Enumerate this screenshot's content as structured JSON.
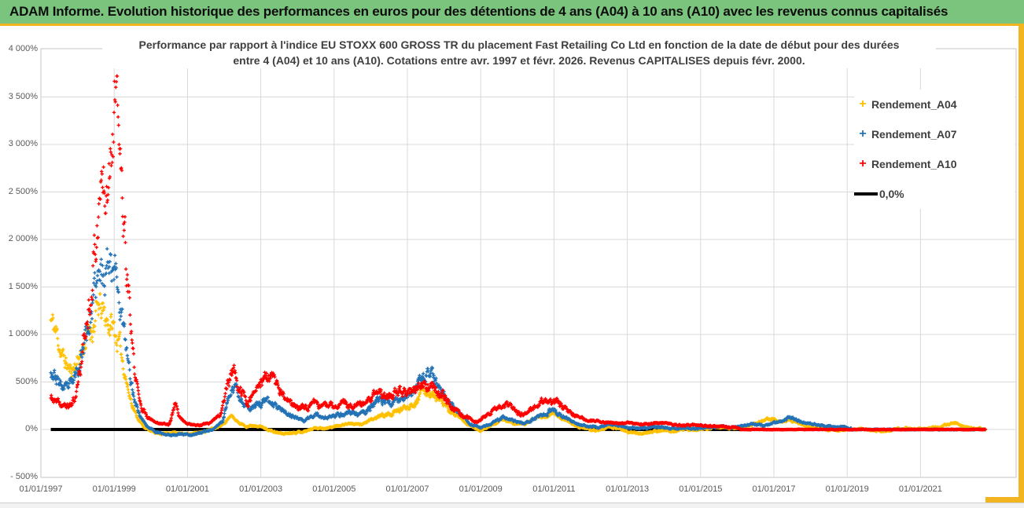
{
  "header": {
    "title": "ADAM Informe. Evolution historique des performances en euros pour des détentions de 4 ans (A04) à 10 ans (A10) avec les revenus connus capitalisés",
    "bg_color": "#7AC47D"
  },
  "chart": {
    "title_lines": [
      "Performance par rapport à l'indice EU STOXX 600 GROSS TR  du placement Fast Retailing Co Ltd en fonction de la date de début pour des durées",
      "entre 4 (A04) et 10 ans (A10). Cotations entre avr. 1997 et févr. 2026. Revenus CAPITALISES depuis févr. 2000."
    ],
    "legend": [
      {
        "label": "Rendement_A04",
        "color": "#FFC000",
        "marker": "plus"
      },
      {
        "label": "Rendement_A07",
        "color": "#2272B5",
        "marker": "plus"
      },
      {
        "label": "Rendement_A10",
        "color": "#FF0000",
        "marker": "plus"
      },
      {
        "label": "0,0%",
        "color": "#000000",
        "marker": "line"
      }
    ]
  },
  "chart_data": {
    "type": "scatter",
    "marker": "plus",
    "grid": true,
    "legend_position": "right",
    "x_axis": {
      "kind": "date",
      "tick_labels": [
        "01/01/1997",
        "01/01/1999",
        "01/01/2001",
        "01/01/2003",
        "01/01/2005",
        "01/01/2007",
        "01/01/2009",
        "01/01/2011",
        "01/01/2013",
        "01/01/2015",
        "01/01/2017",
        "01/01/2019",
        "01/01/2021"
      ],
      "tick_years": [
        1997,
        1999,
        2001,
        2003,
        2005,
        2007,
        2009,
        2011,
        2013,
        2015,
        2017,
        2019,
        2021
      ],
      "data_start_year": 1997.27,
      "data_end_year": 2022.78
    },
    "y_axis": {
      "unit": "%",
      "tick_labels": [
        "4 000%",
        "3 500%",
        "3 000%",
        "2 500%",
        "2 000%",
        "1 500%",
        "1 000%",
        "500%",
        "0%",
        "- 500%"
      ],
      "tick_values": [
        4000,
        3500,
        3000,
        2500,
        2000,
        1500,
        1000,
        500,
        0,
        -500
      ],
      "range": [
        -500,
        4000
      ]
    },
    "zero_line": {
      "label": "0,0%",
      "value": 0,
      "color": "#000000",
      "x_start_year": 1997.27,
      "x_end_year": 2022.78
    },
    "sampling": {
      "points_per_year": 80,
      "spread_factor": 0.13,
      "min_spread": 8,
      "flat_spread": 2.5,
      "value_max": 3720,
      "value_min": -460
    },
    "series": [
      {
        "name": "Rendement_A04",
        "color": "#FFC000",
        "seed": 11,
        "start_year": 1997.27,
        "end_year": 2022.78,
        "flat_zero_from": null,
        "anchors": [
          [
            1997.27,
            1150
          ],
          [
            1997.45,
            980
          ],
          [
            1997.6,
            760
          ],
          [
            1997.8,
            610
          ],
          [
            1998.0,
            720
          ],
          [
            1998.2,
            920
          ],
          [
            1998.45,
            1130
          ],
          [
            1998.6,
            1280
          ],
          [
            1998.75,
            1160
          ],
          [
            1998.95,
            1090
          ],
          [
            1999.1,
            940
          ],
          [
            1999.25,
            700
          ],
          [
            1999.4,
            380
          ],
          [
            1999.6,
            150
          ],
          [
            1999.8,
            30
          ],
          [
            2000.0,
            -20
          ],
          [
            2000.3,
            -45
          ],
          [
            2000.6,
            -30
          ],
          [
            2000.9,
            -50
          ],
          [
            2001.2,
            -40
          ],
          [
            2001.5,
            -15
          ],
          [
            2001.8,
            25
          ],
          [
            2002.0,
            70
          ],
          [
            2002.2,
            145
          ],
          [
            2002.4,
            70
          ],
          [
            2002.6,
            35
          ],
          [
            2002.9,
            45
          ],
          [
            2003.1,
            15
          ],
          [
            2003.35,
            -25
          ],
          [
            2003.6,
            -45
          ],
          [
            2003.9,
            -30
          ],
          [
            2004.2,
            -20
          ],
          [
            2004.5,
            20
          ],
          [
            2004.8,
            10
          ],
          [
            2005.1,
            40
          ],
          [
            2005.4,
            65
          ],
          [
            2005.7,
            50
          ],
          [
            2006.0,
            95
          ],
          [
            2006.3,
            150
          ],
          [
            2006.6,
            165
          ],
          [
            2006.9,
            225
          ],
          [
            2007.2,
            290
          ],
          [
            2007.45,
            420
          ],
          [
            2007.6,
            400
          ],
          [
            2007.8,
            330
          ],
          [
            2008.0,
            260
          ],
          [
            2008.2,
            180
          ],
          [
            2008.45,
            110
          ],
          [
            2008.7,
            35
          ],
          [
            2009.0,
            -15
          ],
          [
            2009.3,
            45
          ],
          [
            2009.6,
            105
          ],
          [
            2009.9,
            70
          ],
          [
            2010.2,
            55
          ],
          [
            2010.5,
            115
          ],
          [
            2010.8,
            155
          ],
          [
            2011.0,
            170
          ],
          [
            2011.3,
            100
          ],
          [
            2011.6,
            40
          ],
          [
            2011.9,
            0
          ],
          [
            2012.2,
            -10
          ],
          [
            2012.5,
            25
          ],
          [
            2012.8,
            5
          ],
          [
            2013.1,
            -30
          ],
          [
            2013.4,
            -45
          ],
          [
            2013.7,
            -20
          ],
          [
            2014.0,
            -10
          ],
          [
            2014.3,
            -20
          ],
          [
            2014.6,
            5
          ],
          [
            2014.9,
            -10
          ],
          [
            2015.2,
            10
          ],
          [
            2015.5,
            25
          ],
          [
            2015.8,
            10
          ],
          [
            2016.1,
            20
          ],
          [
            2016.4,
            45
          ],
          [
            2016.7,
            95
          ],
          [
            2016.9,
            125
          ],
          [
            2017.1,
            85
          ],
          [
            2017.4,
            95
          ],
          [
            2017.6,
            75
          ],
          [
            2017.9,
            35
          ],
          [
            2018.2,
            10
          ],
          [
            2018.5,
            0
          ],
          [
            2018.8,
            -12
          ],
          [
            2019.1,
            0
          ],
          [
            2019.4,
            12
          ],
          [
            2019.7,
            -12
          ],
          [
            2020.0,
            -18
          ],
          [
            2020.3,
            0
          ],
          [
            2020.6,
            12
          ],
          [
            2020.9,
            0
          ],
          [
            2021.2,
            10
          ],
          [
            2021.5,
            30
          ],
          [
            2021.8,
            62
          ],
          [
            2021.95,
            75
          ],
          [
            2022.1,
            40
          ],
          [
            2022.4,
            12
          ],
          [
            2022.78,
            5
          ]
        ]
      },
      {
        "name": "Rendement_A07",
        "color": "#2272B5",
        "seed": 23,
        "start_year": 1997.27,
        "end_year": 2022.78,
        "flat_zero_from": 2019.12,
        "anchors": [
          [
            1997.27,
            650
          ],
          [
            1997.5,
            480
          ],
          [
            1997.7,
            410
          ],
          [
            1997.9,
            510
          ],
          [
            1998.1,
            800
          ],
          [
            1998.3,
            1100
          ],
          [
            1998.5,
            1450
          ],
          [
            1998.7,
            1700
          ],
          [
            1998.9,
            1900
          ],
          [
            1999.0,
            1760
          ],
          [
            1999.15,
            1400
          ],
          [
            1999.3,
            900
          ],
          [
            1999.5,
            400
          ],
          [
            1999.7,
            150
          ],
          [
            1999.9,
            30
          ],
          [
            2000.2,
            -35
          ],
          [
            2000.5,
            -60
          ],
          [
            2000.8,
            -45
          ],
          [
            2001.1,
            -55
          ],
          [
            2001.4,
            -30
          ],
          [
            2001.7,
            0
          ],
          [
            2001.95,
            85
          ],
          [
            2002.15,
            380
          ],
          [
            2002.3,
            420
          ],
          [
            2002.5,
            255
          ],
          [
            2002.7,
            220
          ],
          [
            2002.9,
            280
          ],
          [
            2003.1,
            300
          ],
          [
            2003.3,
            270
          ],
          [
            2003.5,
            250
          ],
          [
            2003.7,
            180
          ],
          [
            2003.9,
            125
          ],
          [
            2004.2,
            100
          ],
          [
            2004.5,
            160
          ],
          [
            2004.8,
            120
          ],
          [
            2005.1,
            150
          ],
          [
            2005.4,
            185
          ],
          [
            2005.7,
            150
          ],
          [
            2006.0,
            225
          ],
          [
            2006.3,
            310
          ],
          [
            2006.6,
            285
          ],
          [
            2006.9,
            350
          ],
          [
            2007.1,
            385
          ],
          [
            2007.35,
            470
          ],
          [
            2007.55,
            590
          ],
          [
            2007.7,
            525
          ],
          [
            2007.9,
            430
          ],
          [
            2008.1,
            330
          ],
          [
            2008.4,
            180
          ],
          [
            2008.7,
            60
          ],
          [
            2009.0,
            20
          ],
          [
            2009.3,
            65
          ],
          [
            2009.6,
            125
          ],
          [
            2009.9,
            85
          ],
          [
            2010.2,
            60
          ],
          [
            2010.5,
            125
          ],
          [
            2010.8,
            175
          ],
          [
            2011.0,
            205
          ],
          [
            2011.3,
            125
          ],
          [
            2011.6,
            60
          ],
          [
            2011.9,
            30
          ],
          [
            2012.2,
            20
          ],
          [
            2012.5,
            60
          ],
          [
            2012.8,
            40
          ],
          [
            2013.1,
            20
          ],
          [
            2013.4,
            10
          ],
          [
            2013.7,
            30
          ],
          [
            2014.0,
            20
          ],
          [
            2014.3,
            10
          ],
          [
            2014.6,
            22
          ],
          [
            2014.9,
            12
          ],
          [
            2015.2,
            20
          ],
          [
            2015.5,
            32
          ],
          [
            2015.8,
            22
          ],
          [
            2016.1,
            30
          ],
          [
            2016.4,
            62
          ],
          [
            2016.7,
            42
          ],
          [
            2017.0,
            72
          ],
          [
            2017.3,
            112
          ],
          [
            2017.5,
            132
          ],
          [
            2017.7,
            92
          ],
          [
            2018.0,
            60
          ],
          [
            2018.3,
            42
          ],
          [
            2018.6,
            30
          ],
          [
            2018.9,
            25
          ],
          [
            2019.12,
            10
          ]
        ]
      },
      {
        "name": "Rendement_A10",
        "color": "#FF0000",
        "seed": 37,
        "start_year": 1997.27,
        "end_year": 2022.78,
        "flat_zero_from": 2016.08,
        "anchors": [
          [
            1997.27,
            330
          ],
          [
            1997.5,
            260
          ],
          [
            1997.75,
            240
          ],
          [
            1997.95,
            330
          ],
          [
            1998.1,
            700
          ],
          [
            1998.3,
            1300
          ],
          [
            1998.5,
            2000
          ],
          [
            1998.65,
            2600
          ],
          [
            1998.8,
            2850
          ],
          [
            1998.95,
            3300
          ],
          [
            1999.05,
            3430
          ],
          [
            1999.15,
            2900
          ],
          [
            1999.25,
            2200
          ],
          [
            1999.4,
            1300
          ],
          [
            1999.55,
            620
          ],
          [
            1999.7,
            280
          ],
          [
            1999.9,
            120
          ],
          [
            2000.2,
            70
          ],
          [
            2000.5,
            55
          ],
          [
            2000.68,
            300
          ],
          [
            2000.78,
            130
          ],
          [
            2001.0,
            60
          ],
          [
            2001.3,
            40
          ],
          [
            2001.6,
            62
          ],
          [
            2001.9,
            150
          ],
          [
            2002.1,
            500
          ],
          [
            2002.25,
            615
          ],
          [
            2002.4,
            430
          ],
          [
            2002.6,
            305
          ],
          [
            2002.8,
            350
          ],
          [
            2003.0,
            480
          ],
          [
            2003.2,
            555
          ],
          [
            2003.35,
            520
          ],
          [
            2003.5,
            420
          ],
          [
            2003.7,
            300
          ],
          [
            2003.9,
            250
          ],
          [
            2004.2,
            232
          ],
          [
            2004.5,
            280
          ],
          [
            2004.75,
            235
          ],
          [
            2005.0,
            252
          ],
          [
            2005.3,
            292
          ],
          [
            2005.6,
            235
          ],
          [
            2005.9,
            300
          ],
          [
            2006.2,
            380
          ],
          [
            2006.5,
            352
          ],
          [
            2006.8,
            420
          ],
          [
            2007.0,
            392
          ],
          [
            2007.3,
            432
          ],
          [
            2007.55,
            470
          ],
          [
            2007.75,
            440
          ],
          [
            2008.0,
            350
          ],
          [
            2008.3,
            205
          ],
          [
            2008.6,
            125
          ],
          [
            2008.9,
            85
          ],
          [
            2009.2,
            155
          ],
          [
            2009.5,
            245
          ],
          [
            2009.7,
            262
          ],
          [
            2009.9,
            205
          ],
          [
            2010.1,
            152
          ],
          [
            2010.4,
            205
          ],
          [
            2010.7,
            292
          ],
          [
            2010.9,
            322
          ],
          [
            2011.1,
            282
          ],
          [
            2011.4,
            182
          ],
          [
            2011.7,
            122
          ],
          [
            2011.9,
            102
          ],
          [
            2012.2,
            90
          ],
          [
            2012.5,
            72
          ],
          [
            2012.8,
            62
          ],
          [
            2013.0,
            72
          ],
          [
            2013.3,
            52
          ],
          [
            2013.6,
            62
          ],
          [
            2013.9,
            72
          ],
          [
            2014.2,
            52
          ],
          [
            2014.5,
            42
          ],
          [
            2014.8,
            52
          ],
          [
            2015.1,
            42
          ],
          [
            2015.4,
            32
          ],
          [
            2015.7,
            26
          ],
          [
            2016.0,
            16
          ],
          [
            2016.08,
            8
          ]
        ]
      }
    ]
  }
}
